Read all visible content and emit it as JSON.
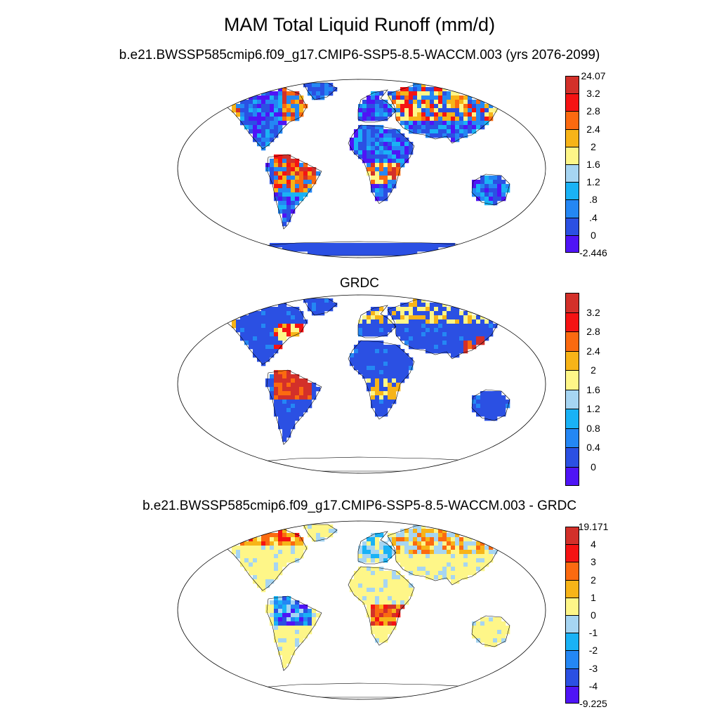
{
  "title": "MAM Total Liquid Runoff (mm/d)",
  "panels": [
    {
      "subtitle": "b.e21.BWSSP585cmip6.f09_g17.CMIP6-SSP5-8.5-WACCM.003 (yrs 2076-2099)",
      "colorbar": {
        "colors": [
          "#d3302a",
          "#f51313",
          "#fb6a10",
          "#f7b418",
          "#fef688",
          "#a6d5f2",
          "#1ab2f5",
          "#2487f4",
          "#2b50e3",
          "#4f14f6"
        ],
        "labels": [
          "24.07",
          "3.2",
          "2.8",
          "2.4",
          "2",
          "1.6",
          "1.2",
          ".8",
          ".4",
          "0",
          "-2.446"
        ],
        "label_mode": "edges"
      },
      "map_field": "model runoff"
    },
    {
      "subtitle": "GRDC",
      "colorbar": {
        "colors": [
          "#d3302a",
          "#f51313",
          "#fb6a10",
          "#f7b418",
          "#fef688",
          "#a6d5f2",
          "#1ab2f5",
          "#2487f4",
          "#2b50e3",
          "#4f14f6"
        ],
        "labels": [
          "3.2",
          "2.8",
          "2.4",
          "2",
          "1.6",
          "1.2",
          "0.8",
          "0.4",
          "0"
        ],
        "label_mode": "interior"
      },
      "map_field": "observed runoff"
    },
    {
      "subtitle": "b.e21.BWSSP585cmip6.f09_g17.CMIP6-SSP5-8.5-WACCM.003 - GRDC",
      "colorbar": {
        "colors": [
          "#d3302a",
          "#f51313",
          "#fb6a10",
          "#f7b418",
          "#fef688",
          "#a6d5f2",
          "#1ab2f5",
          "#2487f4",
          "#2b50e3",
          "#4f14f6"
        ],
        "labels": [
          "19.171",
          "4",
          "3",
          "2",
          "1",
          "0",
          "-1",
          "-2",
          "-3",
          "-4",
          "-9.225"
        ],
        "label_mode": "edges"
      },
      "map_field": "difference"
    }
  ]
}
